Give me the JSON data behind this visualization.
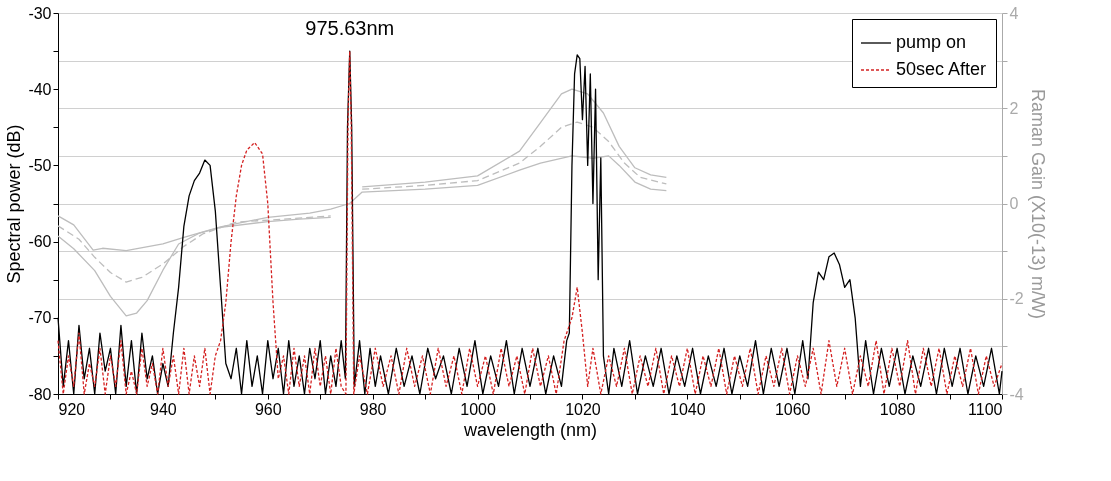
{
  "chart_data": {
    "type": "line",
    "xlabel": "wavelength (nm)",
    "ylabel": "Spectral power (dB)",
    "y2label": "Raman Gain (X10(-13) m/W)",
    "xlim": [
      920,
      1100
    ],
    "xticks": [
      920,
      {
        "value": 930,
        "label": null
      },
      940,
      {
        "value": 950,
        "label": null
      },
      960,
      {
        "value": 970,
        "label": null
      },
      980,
      {
        "value": 990,
        "label": null
      },
      1000,
      {
        "value": 1010,
        "label": null
      },
      1020,
      {
        "value": 1030,
        "label": null
      },
      1040,
      {
        "value": 1050,
        "label": null
      },
      1060,
      {
        "value": 1070,
        "label": null
      },
      1080,
      {
        "value": 1090,
        "label": null
      },
      1100
    ],
    "ylim": [
      -80,
      -30
    ],
    "yticks": [
      -80,
      {
        "value": -75,
        "label": null
      },
      -70,
      {
        "value": -65,
        "label": null
      },
      -60,
      {
        "value": -55,
        "label": null
      },
      -50,
      {
        "value": -45,
        "label": null
      },
      -40,
      {
        "value": -35,
        "label": null
      },
      -30
    ],
    "y2lim": [
      -4,
      4
    ],
    "y2ticks": [
      -4,
      {
        "value": -3,
        "label": null
      },
      -2,
      {
        "value": -1,
        "label": null
      },
      0,
      {
        "value": 1,
        "label": null
      },
      2,
      {
        "value": 3,
        "label": null
      },
      4
    ],
    "grid": "y2",
    "legend": "top right",
    "annotations": [
      {
        "text": "975.63nm",
        "x": 975.63,
        "y": -35
      }
    ],
    "series": [
      {
        "name": "pump on",
        "color": "#000000",
        "line_style": "solid",
        "x": [
          920,
          921,
          922,
          923,
          924,
          925,
          926,
          927,
          928,
          929,
          930,
          931,
          932,
          933,
          934,
          935,
          936,
          937,
          938,
          939,
          940,
          941,
          942,
          943,
          944,
          945,
          946,
          947,
          948,
          949,
          950,
          951,
          952,
          953,
          954,
          955,
          956,
          957,
          958,
          959,
          960,
          961,
          962,
          963,
          964,
          965,
          966,
          967,
          968,
          969,
          970,
          971,
          972,
          973,
          974,
          974.8,
          975.2,
          975.63,
          976,
          976.5,
          977.5,
          978.5,
          979.5,
          980.5,
          981.5,
          983,
          984.5,
          986,
          987.5,
          989,
          990.5,
          992,
          993.5,
          995,
          996.5,
          998,
          999.5,
          1001,
          1002.5,
          1004,
          1005.5,
          1007,
          1008.5,
          1010,
          1011.5,
          1013,
          1014.5,
          1016,
          1017,
          1017.5,
          1018,
          1018.5,
          1019,
          1019.5,
          1020,
          1020.5,
          1021,
          1021.5,
          1022,
          1022.5,
          1023,
          1023.5,
          1024,
          1025,
          1026,
          1027.5,
          1029,
          1030.5,
          1032,
          1033.5,
          1035,
          1036.5,
          1038,
          1039.5,
          1041,
          1042.5,
          1044,
          1045.5,
          1047,
          1048.5,
          1050,
          1051.5,
          1053,
          1054.5,
          1056,
          1057.5,
          1059,
          1060.5,
          1062,
          1063,
          1064,
          1065,
          1066,
          1067,
          1068,
          1069,
          1070,
          1071,
          1072,
          1073,
          1074,
          1075.5,
          1077,
          1078.5,
          1080,
          1081.5,
          1083,
          1084.5,
          1086,
          1087.5,
          1089,
          1090.5,
          1092,
          1093.5,
          1095,
          1096.5,
          1098,
          1099.5,
          1100
        ],
        "values": [
          -70,
          -79,
          -73,
          -80,
          -71,
          -78,
          -74,
          -80,
          -72,
          -77,
          -74,
          -80,
          -71,
          -79,
          -73,
          -80,
          -72,
          -78,
          -75,
          -80,
          -76,
          -79,
          -72,
          -66,
          -58,
          -54,
          -52,
          -51,
          -49.3,
          -50,
          -56,
          -66,
          -76,
          -78,
          -74,
          -80,
          -73,
          -79,
          -75,
          -80,
          -73,
          -78,
          -74,
          -80,
          -73,
          -79,
          -75,
          -80,
          -74,
          -78,
          -73,
          -80,
          -75,
          -79,
          -73,
          -78,
          -45,
          -35,
          -45,
          -79,
          -73,
          -80,
          -74,
          -79,
          -75,
          -80,
          -74,
          -79,
          -75,
          -80,
          -74,
          -78,
          -75,
          -80,
          -74,
          -79,
          -73,
          -80,
          -75,
          -79,
          -73,
          -80,
          -74,
          -79,
          -74,
          -80,
          -75,
          -79,
          -73,
          -72,
          -50,
          -38,
          -35.5,
          -36,
          -44,
          -37,
          -50,
          -38,
          -55,
          -40,
          -65,
          -49,
          -75,
          -80,
          -74,
          -79,
          -73,
          -80,
          -75,
          -79,
          -74,
          -80,
          -75,
          -79,
          -74,
          -80,
          -75,
          -79,
          -74,
          -80,
          -75,
          -79,
          -73,
          -80,
          -74,
          -79,
          -74,
          -80,
          -73,
          -78,
          -68,
          -64,
          -65,
          -62,
          -61.5,
          -63,
          -66,
          -65,
          -70,
          -79,
          -73,
          -80,
          -74,
          -79,
          -74,
          -80,
          -75,
          -79,
          -74,
          -80,
          -74,
          -79,
          -74,
          -80,
          -75,
          -79,
          -74,
          -80,
          -77
        ]
      },
      {
        "name": "50sec After",
        "color": "#d42020",
        "line_style": "dotted",
        "x": [
          920,
          921,
          922,
          923,
          924,
          925,
          926,
          927,
          928,
          929,
          930,
          931,
          932,
          933,
          934,
          935,
          936,
          937,
          938,
          939,
          940,
          941,
          942,
          943,
          944,
          945,
          946,
          947,
          948,
          949,
          950,
          951,
          952,
          953,
          954,
          955,
          956,
          957.5,
          959,
          960,
          961,
          962,
          963,
          964,
          965,
          966,
          967,
          968,
          969,
          970,
          971,
          972,
          973,
          974,
          974.9,
          975.3,
          975.63,
          975.9,
          976.4,
          977.5,
          979,
          980.5,
          982,
          983.5,
          985,
          986.5,
          988,
          989.5,
          991,
          992.5,
          994,
          995.5,
          997,
          998.5,
          1000,
          1001.5,
          1003,
          1004.5,
          1006,
          1007.5,
          1009,
          1010.5,
          1012,
          1013.5,
          1015,
          1016.5,
          1018,
          1019,
          1020,
          1021,
          1022,
          1023.5,
          1025,
          1026.5,
          1028,
          1029.5,
          1031,
          1032.5,
          1034,
          1035.5,
          1037,
          1038.5,
          1040,
          1041.5,
          1043,
          1044.5,
          1046,
          1047.5,
          1049,
          1050.5,
          1052,
          1053.5,
          1055,
          1056.5,
          1058,
          1059.5,
          1061,
          1062.5,
          1064,
          1065.5,
          1067,
          1068.5,
          1070,
          1071.5,
          1073,
          1074.5,
          1076,
          1077.5,
          1079,
          1080.5,
          1082,
          1083.5,
          1085,
          1086.5,
          1088,
          1089.5,
          1091,
          1092.5,
          1094,
          1095.5,
          1097,
          1098.5,
          1100
        ],
        "values": [
          -73,
          -80,
          -75,
          -79,
          -72,
          -80,
          -76,
          -79,
          -74,
          -80,
          -75,
          -79,
          -73,
          -80,
          -77,
          -80,
          -74,
          -79,
          -76,
          -80,
          -74,
          -79,
          -75,
          -80,
          -74,
          -80,
          -75,
          -79,
          -74,
          -80,
          -75,
          -73,
          -68,
          -60,
          -54,
          -50,
          -48,
          -47,
          -48.5,
          -55,
          -68,
          -78,
          -75,
          -80,
          -74,
          -79,
          -75,
          -80,
          -74,
          -79,
          -75,
          -80,
          -74,
          -79,
          -80,
          -44,
          -35,
          -44,
          -80,
          -75,
          -80,
          -74,
          -79,
          -75,
          -80,
          -74,
          -79,
          -75,
          -80,
          -74,
          -79,
          -75,
          -80,
          -74,
          -79,
          -75,
          -80,
          -74,
          -79,
          -75,
          -80,
          -74,
          -79,
          -75,
          -80,
          -73,
          -70,
          -66,
          -72,
          -79,
          -74,
          -80,
          -75,
          -79,
          -74,
          -80,
          -75,
          -79,
          -74,
          -80,
          -75,
          -79,
          -74,
          -80,
          -75,
          -79,
          -74,
          -80,
          -75,
          -79,
          -74,
          -80,
          -75,
          -79,
          -74,
          -80,
          -75,
          -79,
          -74,
          -80,
          -73,
          -79,
          -74,
          -80,
          -75,
          -79,
          -73,
          -80,
          -74,
          -79,
          -73,
          -80,
          -74,
          -79,
          -74,
          -80,
          -75,
          -79,
          -74,
          -80,
          -75,
          -79,
          -76
        ]
      },
      {
        "color": "#bdbdbd",
        "line_style": "solid",
        "axis": "y2",
        "x": [
          920,
          923,
          927,
          930,
          933,
          935,
          937,
          940,
          943,
          947,
          951,
          960,
          966,
          972,
          975,
          978,
          990,
          1000,
          1008,
          1012,
          1016,
          1018,
          1021,
          1024,
          1027,
          1030,
          1033,
          1036
        ],
        "values": [
          -0.68,
          -0.95,
          -1.41,
          -1.95,
          -2.36,
          -2.3,
          -2.04,
          -1.4,
          -0.85,
          -0.62,
          -0.5,
          -0.38,
          -0.33,
          -0.29,
          null,
          0.35,
          0.45,
          0.58,
          1.1,
          1.7,
          2.3,
          2.4,
          2.3,
          1.9,
          1.2,
          0.75,
          0.6,
          0.55
        ]
      },
      {
        "color": "#bdbdbd",
        "line_style": "dashed",
        "axis": "y2",
        "x": [
          920,
          924,
          927,
          930,
          933,
          936,
          940,
          944,
          947.6,
          954,
          963,
          972,
          975,
          978,
          990,
          1000,
          1008,
          1012,
          1016,
          1019,
          1022,
          1025,
          1028,
          1031,
          1036
        ],
        "values": [
          -0.47,
          -0.75,
          -1.13,
          -1.45,
          -1.65,
          -1.55,
          -1.27,
          -0.9,
          -0.64,
          -0.39,
          -0.33,
          -0.26,
          null,
          0.3,
          0.38,
          0.48,
          0.85,
          1.2,
          1.6,
          1.71,
          1.6,
          1.3,
          0.85,
          0.55,
          0.41
        ]
      },
      {
        "color": "#bdbdbd",
        "line_style": "solid",
        "axis": "y2",
        "x": [
          920,
          923,
          926.7,
          928.5,
          933,
          940,
          944,
          951,
          960,
          968,
          972,
          975.6,
          978,
          990,
          1000,
          1008,
          1012,
          1018,
          1022,
          1025,
          1027,
          1030,
          1033,
          1036
        ],
        "values": [
          -0.26,
          -0.45,
          -0.98,
          -0.94,
          -0.99,
          -0.85,
          -0.71,
          -0.49,
          -0.29,
          -0.2,
          -0.12,
          0,
          0.24,
          0.3,
          0.38,
          0.7,
          0.85,
          1.0,
          0.95,
          1.0,
          0.8,
          0.45,
          0.3,
          0.27
        ]
      }
    ]
  }
}
